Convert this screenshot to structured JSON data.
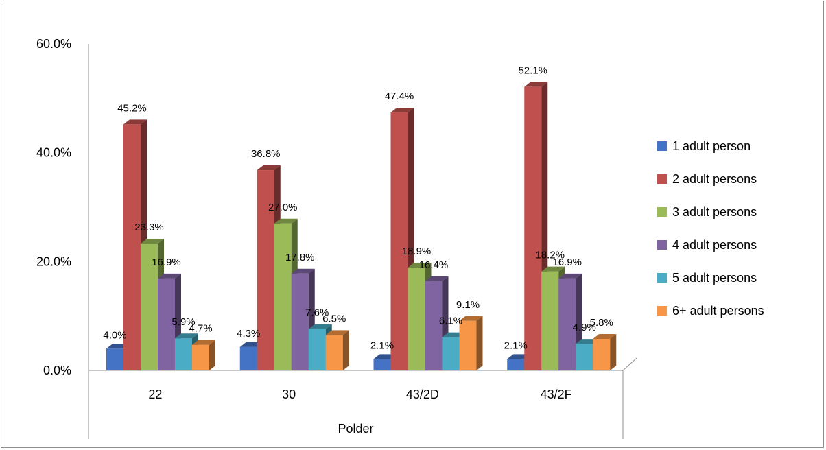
{
  "chart_data": {
    "type": "bar",
    "categories": [
      "22",
      "30",
      "43/2D",
      "43/2F"
    ],
    "xlabel": "Polder",
    "ylabel": "",
    "ylim": [
      0,
      60
    ],
    "yticks": [
      "0.0%",
      "20.0%",
      "40.0%",
      "60.0%"
    ],
    "legend_position": "right",
    "grid": false,
    "series": [
      {
        "name": "1 adult person",
        "values": [
          4.0,
          4.3,
          2.1,
          2.1
        ],
        "labels": [
          "4.0%",
          "4.3%",
          "2.1%",
          "2.1%"
        ],
        "color": "#4472C4"
      },
      {
        "name": "2 adult persons",
        "values": [
          45.2,
          36.8,
          47.4,
          52.1
        ],
        "labels": [
          "45.2%",
          "36.8%",
          "47.4%",
          "52.1%"
        ],
        "color": "#C0504D"
      },
      {
        "name": "3 adult persons",
        "values": [
          23.3,
          27.0,
          18.9,
          18.2
        ],
        "labels": [
          "23.3%",
          "27.0%",
          "18.9%",
          "18.2%"
        ],
        "color": "#9BBB59"
      },
      {
        "name": "4 adult persons",
        "values": [
          16.9,
          17.8,
          16.4,
          16.9
        ],
        "labels": [
          "16.9%",
          "17.8%",
          "16.4%",
          "16.9%"
        ],
        "color": "#8064A2"
      },
      {
        "name": "5 adult persons",
        "values": [
          5.9,
          7.6,
          6.1,
          4.9
        ],
        "labels": [
          "5.9%",
          "7.6%",
          "6.1%",
          "4.9%"
        ],
        "color": "#4BACC6"
      },
      {
        "name": "6+ adult persons",
        "values": [
          4.7,
          6.5,
          9.1,
          5.8
        ],
        "labels": [
          "4.7%",
          "6.5%",
          "9.1%",
          "5.8%"
        ],
        "color": "#F79646"
      }
    ]
  }
}
